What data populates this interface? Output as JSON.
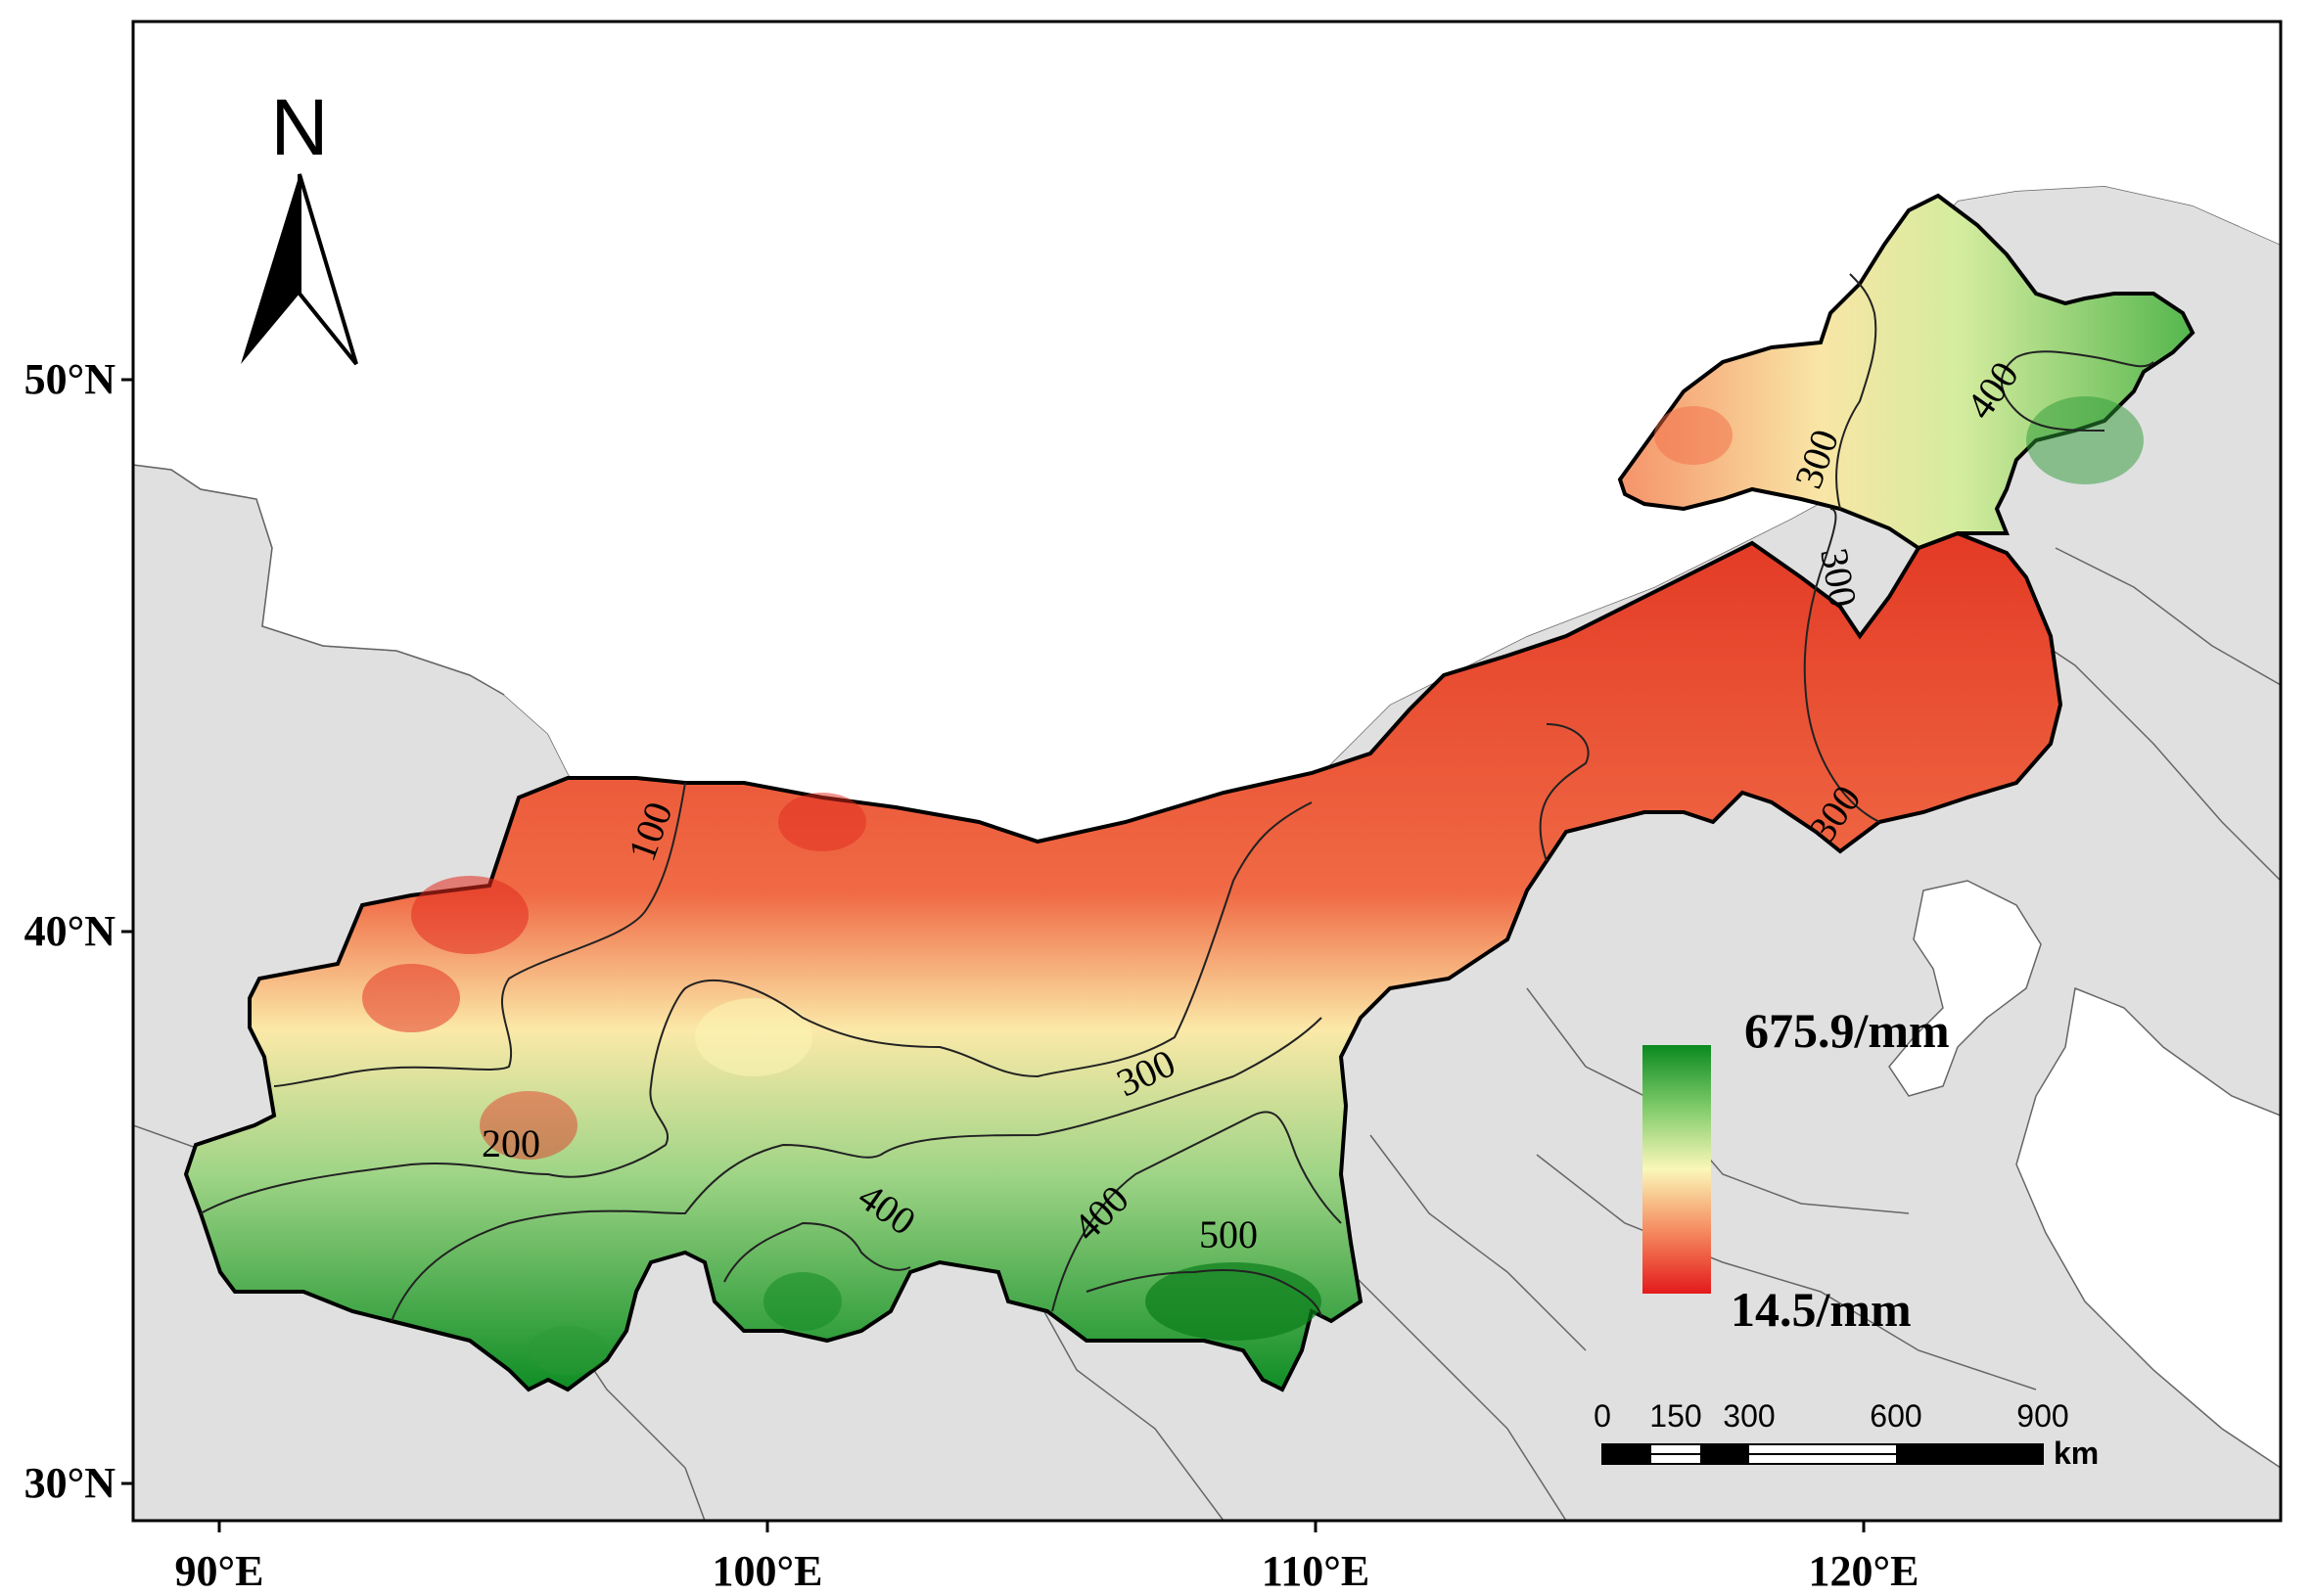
{
  "map": {
    "axes": {
      "x_ticks": [
        "90°E",
        "100°E",
        "110°E",
        "120°E"
      ],
      "y_ticks": [
        "50°N",
        "40°N",
        "30°N"
      ]
    },
    "north_arrow": {
      "label": "N",
      "icon": "north-arrow-icon"
    },
    "contours": [
      "100",
      "200",
      "300",
      "300",
      "300",
      "300",
      "400",
      "400",
      "400",
      "500"
    ],
    "legend": {
      "max_label": "675.9/mm",
      "min_label": "14.5/mm",
      "colors": {
        "high": "#0a8a1f",
        "mid": "#fbf7b8",
        "low": "#e31a1c"
      }
    },
    "scale_bar": {
      "ticks": [
        "0",
        "150",
        "300",
        "600",
        "900"
      ],
      "unit": "km"
    },
    "colors": {
      "background_land": "#e0e0e0",
      "frame": "#000000"
    }
  }
}
